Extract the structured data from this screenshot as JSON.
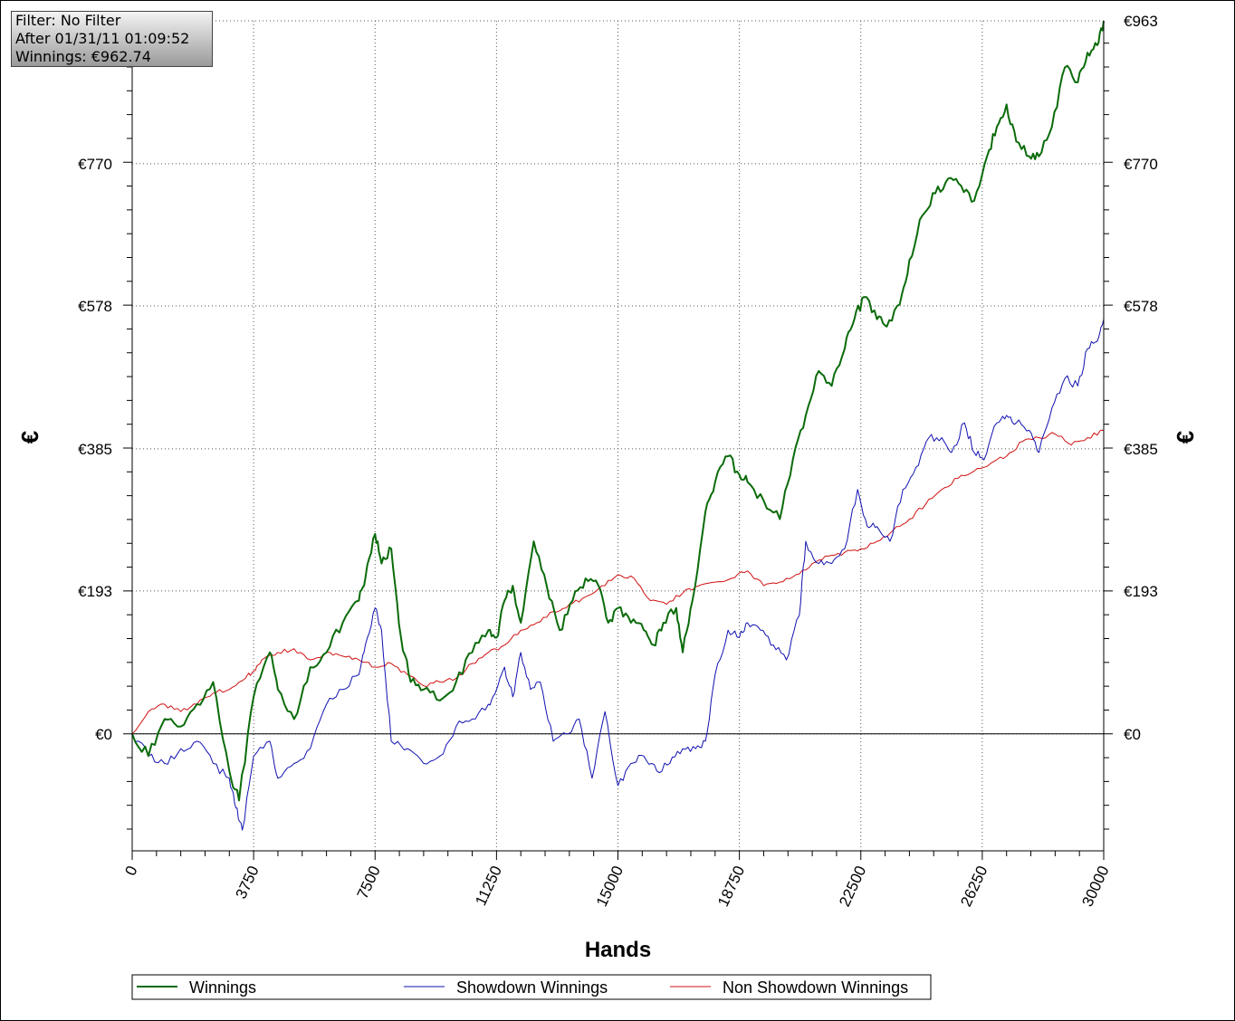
{
  "info": {
    "filter": "Filter: No Filter",
    "after": "After 01/31/11 01:09:52",
    "winnings": "Winnings: €962.74"
  },
  "chart_data": {
    "type": "line",
    "title": "",
    "xlabel": "Hands",
    "ylabel": "€",
    "xlim": [
      0,
      30000
    ],
    "ylim": [
      -158,
      963
    ],
    "x_ticks": [
      0,
      3750,
      7500,
      11250,
      15000,
      18750,
      22500,
      26250,
      30000
    ],
    "y_ticks": [
      {
        "value": 0,
        "label": "€0"
      },
      {
        "value": 193,
        "label": "€193"
      },
      {
        "value": 385,
        "label": "€385"
      },
      {
        "value": 578,
        "label": "€578"
      },
      {
        "value": 770,
        "label": "€770"
      },
      {
        "value": 963,
        "label": "€963"
      }
    ],
    "grid": true,
    "legend_position": "bottom",
    "series": [
      {
        "name": "Winnings",
        "color": "#0a6b0a",
        "x": [
          0,
          500,
          1000,
          1500,
          2000,
          2500,
          3000,
          3300,
          3750,
          4250,
          4500,
          5000,
          5500,
          6000,
          6500,
          7000,
          7200,
          7500,
          7700,
          8000,
          8300,
          8600,
          9000,
          9500,
          10000,
          10500,
          11000,
          11250,
          11500,
          11750,
          12000,
          12400,
          12800,
          13200,
          13600,
          14000,
          14400,
          14700,
          15000,
          15400,
          15800,
          16100,
          16400,
          16800,
          17000,
          17300,
          17700,
          18000,
          18400,
          18750,
          19000,
          19500,
          20000,
          20400,
          20800,
          21200,
          21600,
          22000,
          22300,
          22600,
          23000,
          23300,
          23700,
          24000,
          24400,
          24800,
          25200,
          25600,
          26000,
          26400,
          26700,
          27000,
          27300,
          27700,
          28000,
          28400,
          28800,
          29200,
          29500,
          29800,
          30000
        ],
        "values": [
          0,
          -30,
          20,
          10,
          40,
          70,
          -50,
          -90,
          50,
          110,
          60,
          20,
          90,
          110,
          150,
          180,
          210,
          270,
          230,
          250,
          130,
          70,
          60,
          45,
          70,
          110,
          140,
          130,
          180,
          200,
          150,
          260,
          200,
          140,
          180,
          210,
          200,
          150,
          170,
          150,
          140,
          120,
          150,
          170,
          110,
          180,
          300,
          340,
          375,
          350,
          340,
          315,
          290,
          370,
          430,
          490,
          470,
          520,
          560,
          590,
          560,
          550,
          580,
          640,
          700,
          730,
          750,
          740,
          720,
          780,
          820,
          850,
          800,
          780,
          780,
          820,
          900,
          880,
          920,
          930,
          963
        ]
      },
      {
        "name": "Showdown Winnings",
        "color": "#1010b0",
        "x": [
          0,
          500,
          1000,
          1500,
          2000,
          2500,
          3000,
          3200,
          3400,
          3750,
          4250,
          4500,
          5000,
          5500,
          6000,
          6500,
          7000,
          7200,
          7500,
          7700,
          8000,
          8500,
          9000,
          9500,
          10000,
          10500,
          11000,
          11250,
          11500,
          11750,
          12000,
          12300,
          12600,
          13000,
          13400,
          13800,
          14200,
          14600,
          15000,
          15400,
          15800,
          16200,
          16600,
          17000,
          17400,
          17700,
          18000,
          18400,
          18750,
          19000,
          19400,
          19800,
          20200,
          20600,
          20800,
          21200,
          21600,
          22000,
          22400,
          22700,
          23000,
          23400,
          23800,
          24200,
          24600,
          25000,
          25300,
          25700,
          26000,
          26300,
          26700,
          27000,
          27300,
          27700,
          28000,
          28400,
          28800,
          29200,
          29500,
          29800,
          30000
        ],
        "values": [
          0,
          -30,
          -40,
          -20,
          -10,
          -40,
          -60,
          -100,
          -130,
          -30,
          -10,
          -60,
          -40,
          -20,
          40,
          60,
          80,
          120,
          170,
          140,
          -10,
          -20,
          -40,
          -30,
          10,
          20,
          40,
          60,
          90,
          50,
          110,
          60,
          70,
          -10,
          0,
          20,
          -60,
          30,
          -70,
          -40,
          -30,
          -50,
          -40,
          -20,
          -20,
          -10,
          80,
          140,
          130,
          150,
          140,
          120,
          100,
          160,
          260,
          230,
          230,
          250,
          330,
          280,
          280,
          260,
          330,
          360,
          400,
          400,
          380,
          420,
          380,
          370,
          420,
          430,
          420,
          410,
          380,
          440,
          480,
          470,
          520,
          530,
          560
        ]
      },
      {
        "name": "Non Showdown Winnings",
        "color": "#d01010",
        "x": [
          0,
          500,
          1000,
          1500,
          2000,
          2500,
          3000,
          3500,
          3750,
          4000,
          4500,
          5000,
          5500,
          6000,
          6500,
          7000,
          7500,
          8000,
          8500,
          9000,
          9500,
          10000,
          10500,
          11000,
          11500,
          12000,
          12500,
          13000,
          13500,
          14000,
          14500,
          15000,
          15500,
          16000,
          16500,
          17000,
          17500,
          18000,
          18500,
          19000,
          19500,
          20000,
          20500,
          21000,
          21500,
          22000,
          22500,
          23000,
          23500,
          24000,
          24500,
          25000,
          25500,
          26000,
          26500,
          27000,
          27500,
          28000,
          28500,
          29000,
          29500,
          30000
        ],
        "values": [
          0,
          30,
          40,
          30,
          40,
          55,
          60,
          75,
          85,
          100,
          110,
          115,
          100,
          110,
          105,
          100,
          90,
          95,
          80,
          65,
          70,
          75,
          95,
          110,
          120,
          140,
          150,
          165,
          175,
          185,
          200,
          215,
          210,
          180,
          175,
          190,
          200,
          205,
          210,
          220,
          200,
          205,
          215,
          230,
          240,
          245,
          250,
          260,
          275,
          290,
          310,
          330,
          345,
          355,
          365,
          375,
          395,
          400,
          405,
          390,
          400,
          410
        ]
      }
    ]
  }
}
